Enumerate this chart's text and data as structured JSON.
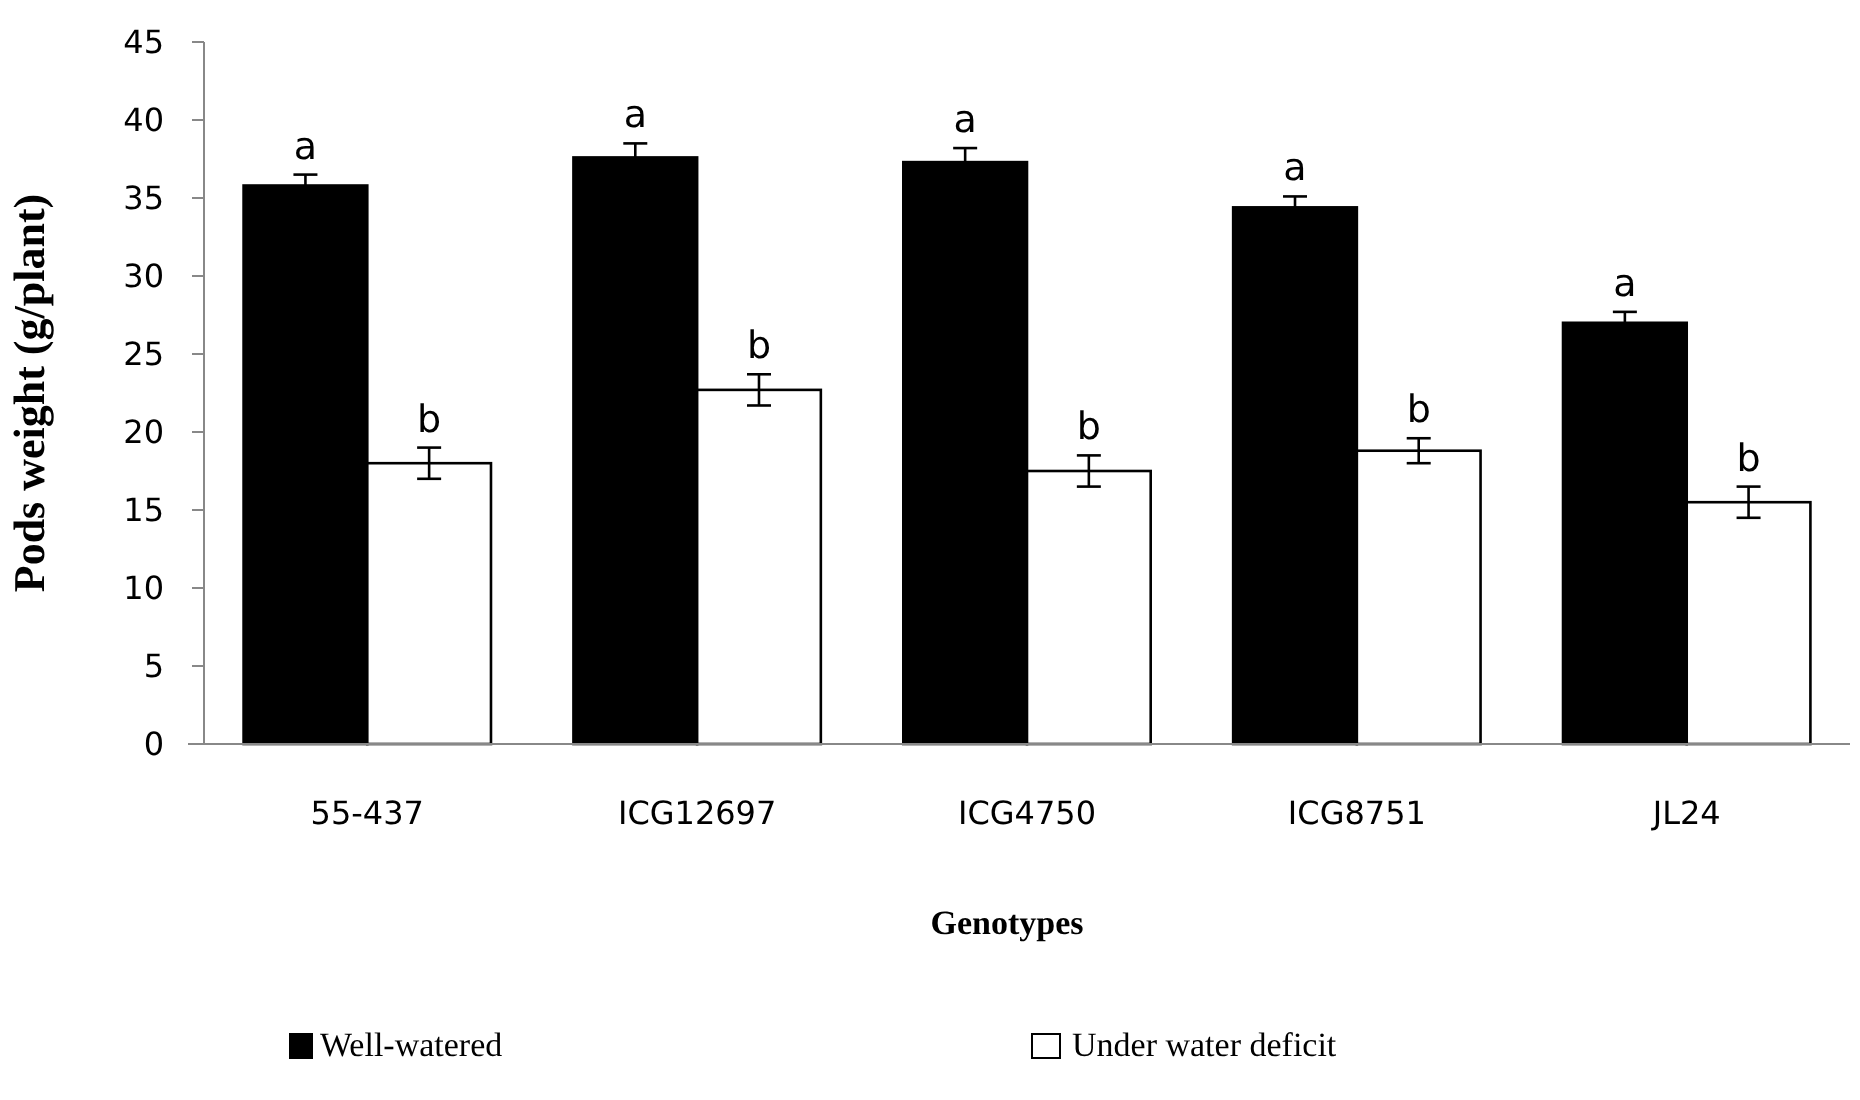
{
  "chart_data": {
    "type": "bar",
    "xlabel": "Genotypes",
    "ylabel": "Pods weight (g/plant)",
    "categories": [
      "55-437",
      "ICG12697",
      "ICG4750",
      "ICG8751",
      "JL24"
    ],
    "series": [
      {
        "name": "Well-watered",
        "color": "#000000",
        "values": [
          35.8,
          37.6,
          37.3,
          34.4,
          27.0
        ],
        "errors": [
          0.7,
          0.9,
          0.9,
          0.7,
          0.7
        ]
      },
      {
        "name": "Under water deficit",
        "color": "#ffffff",
        "values": [
          18.0,
          22.7,
          17.5,
          18.8,
          15.5
        ],
        "errors": [
          1.0,
          1.0,
          1.0,
          0.8,
          1.0
        ]
      }
    ],
    "annotations": [
      {
        "text": "a",
        "x": "55-437",
        "y": 35.8
      },
      {
        "text": "b",
        "x": "55-437",
        "y": 18.0
      },
      {
        "text": "a",
        "x": "ICG12697",
        "y": 37.6
      },
      {
        "text": "b",
        "x": "ICG12697",
        "y": 22.7
      },
      {
        "text": "a",
        "x": "ICG4750",
        "y": 37.3
      },
      {
        "text": "b",
        "x": "ICG4750",
        "y": 17.5
      },
      {
        "text": "a",
        "x": "ICG8751",
        "y": 34.4
      },
      {
        "text": "b",
        "x": "ICG8751",
        "y": 18.8
      },
      {
        "text": "a",
        "x": "JL24",
        "y": 27.0
      },
      {
        "text": "b",
        "x": "JL24",
        "y": 15.5
      }
    ],
    "ylim": [
      0,
      45
    ],
    "yticks": [
      0,
      5,
      10,
      15,
      20,
      25,
      30,
      35,
      40,
      45
    ],
    "grid": false,
    "legend": "bottom"
  }
}
